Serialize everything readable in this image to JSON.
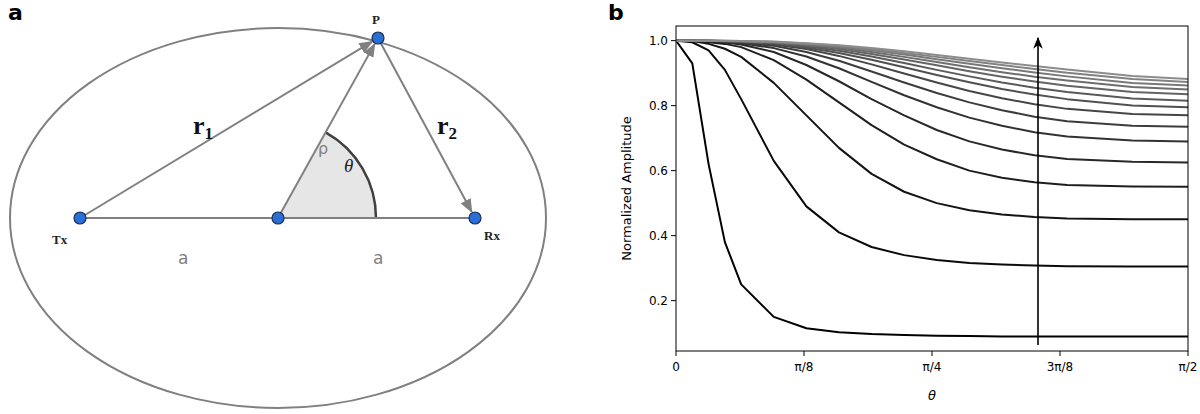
{
  "diagram": {
    "panel_label": "a",
    "tx": "Tx",
    "rx": "Rx",
    "p": "P",
    "r1": {
      "symbol": "r",
      "subscript": "1"
    },
    "r2": {
      "symbol": "r",
      "subscript": "2"
    },
    "rho": "ρ",
    "theta": "θ",
    "a_left": "a",
    "a_right": "a"
  },
  "chart_data": {
    "type": "line",
    "title": "b",
    "x_label": "θ",
    "y_label": "Normalized Amplitude",
    "xlim": [
      0,
      1.5708
    ],
    "ylim": [
      0.045,
      1.045
    ],
    "xticks": [
      0,
      {
        "value": 0.3927,
        "label": "π/8"
      },
      {
        "value": 0.7854,
        "label": "π/4"
      },
      {
        "value": 1.1781,
        "label": "3π/8"
      },
      {
        "value": 1.5708,
        "label": "π/2"
      }
    ],
    "yticks": [
      0.2,
      0.4,
      0.6,
      0.8,
      {
        "value": 1,
        "label": "1.0"
      }
    ],
    "grid": false,
    "x": [
      0,
      0.05,
      0.1,
      0.15,
      0.2,
      0.3,
      0.4,
      0.5,
      0.6,
      0.7,
      0.8,
      0.9,
      1.0,
      1.1,
      1.2,
      1.4,
      1.5708
    ],
    "series": [
      {
        "color": "#000000",
        "values": [
          1.0,
          0.93,
          0.62,
          0.38,
          0.25,
          0.15,
          0.115,
          0.103,
          0.097,
          0.094,
          0.092,
          0.091,
          0.09,
          0.09,
          0.09,
          0.09,
          0.09
        ]
      },
      {
        "color": "#0a0a0a",
        "values": [
          1.0,
          0.995,
          0.97,
          0.91,
          0.82,
          0.63,
          0.49,
          0.41,
          0.365,
          0.34,
          0.325,
          0.316,
          0.311,
          0.308,
          0.306,
          0.305,
          0.305
        ]
      },
      {
        "color": "#141414",
        "values": [
          1.0,
          0.999,
          0.99,
          0.975,
          0.95,
          0.87,
          0.77,
          0.67,
          0.59,
          0.535,
          0.5,
          0.478,
          0.465,
          0.457,
          0.453,
          0.45,
          0.45
        ]
      },
      {
        "color": "#1e1e1e",
        "values": [
          1.0,
          1.0,
          0.995,
          0.99,
          0.98,
          0.94,
          0.88,
          0.81,
          0.74,
          0.68,
          0.635,
          0.6,
          0.578,
          0.564,
          0.556,
          0.551,
          0.55
        ]
      },
      {
        "color": "#282828",
        "values": [
          1.0,
          1.0,
          0.998,
          0.994,
          0.988,
          0.965,
          0.925,
          0.875,
          0.82,
          0.77,
          0.725,
          0.69,
          0.665,
          0.647,
          0.636,
          0.627,
          0.625
        ]
      },
      {
        "color": "#323232",
        "values": [
          1.0,
          1.0,
          0.999,
          0.996,
          0.992,
          0.977,
          0.951,
          0.915,
          0.873,
          0.832,
          0.795,
          0.763,
          0.738,
          0.718,
          0.705,
          0.693,
          0.69
        ]
      },
      {
        "color": "#3c3c3c",
        "values": [
          1.0,
          1.0,
          0.999,
          0.997,
          0.994,
          0.984,
          0.965,
          0.938,
          0.905,
          0.871,
          0.839,
          0.81,
          0.786,
          0.766,
          0.752,
          0.738,
          0.735
        ]
      },
      {
        "color": "#464646",
        "values": [
          1.0,
          1.0,
          1.0,
          0.998,
          0.996,
          0.988,
          0.974,
          0.953,
          0.927,
          0.899,
          0.871,
          0.845,
          0.823,
          0.804,
          0.79,
          0.774,
          0.77
        ]
      },
      {
        "color": "#505050",
        "values": [
          1.0,
          1.0,
          1.0,
          0.998,
          0.997,
          0.991,
          0.979,
          0.962,
          0.941,
          0.918,
          0.894,
          0.872,
          0.851,
          0.834,
          0.82,
          0.8,
          0.795
        ]
      },
      {
        "color": "#5a5a5a",
        "values": [
          1.0,
          1.0,
          1.0,
          0.999,
          0.997,
          0.993,
          0.983,
          0.969,
          0.951,
          0.931,
          0.91,
          0.89,
          0.871,
          0.855,
          0.842,
          0.822,
          0.815
        ]
      },
      {
        "color": "#646464",
        "values": [
          1.0,
          1.0,
          1.0,
          0.999,
          0.998,
          0.994,
          0.986,
          0.974,
          0.959,
          0.942,
          0.924,
          0.906,
          0.889,
          0.874,
          0.861,
          0.842,
          0.835
        ]
      },
      {
        "color": "#6e6e6e",
        "values": [
          1.0,
          1.0,
          1.0,
          0.999,
          0.998,
          0.995,
          0.988,
          0.978,
          0.965,
          0.95,
          0.934,
          0.918,
          0.903,
          0.889,
          0.877,
          0.857,
          0.85
        ]
      },
      {
        "color": "#787878",
        "values": [
          1.0,
          1.0,
          1.0,
          0.999,
          0.998,
          0.996,
          0.99,
          0.981,
          0.97,
          0.957,
          0.943,
          0.929,
          0.915,
          0.902,
          0.89,
          0.87,
          0.862
        ]
      },
      {
        "color": "#828282",
        "values": [
          1.0,
          1.0,
          1.0,
          1.0,
          0.999,
          0.996,
          0.991,
          0.984,
          0.974,
          0.962,
          0.95,
          0.937,
          0.925,
          0.913,
          0.901,
          0.882,
          0.873
        ]
      },
      {
        "color": "#8c8c8c",
        "values": [
          1.0,
          1.0,
          1.0,
          1.0,
          0.999,
          0.997,
          0.992,
          0.986,
          0.977,
          0.967,
          0.956,
          0.944,
          0.933,
          0.922,
          0.911,
          0.891,
          0.882
        ]
      }
    ]
  }
}
